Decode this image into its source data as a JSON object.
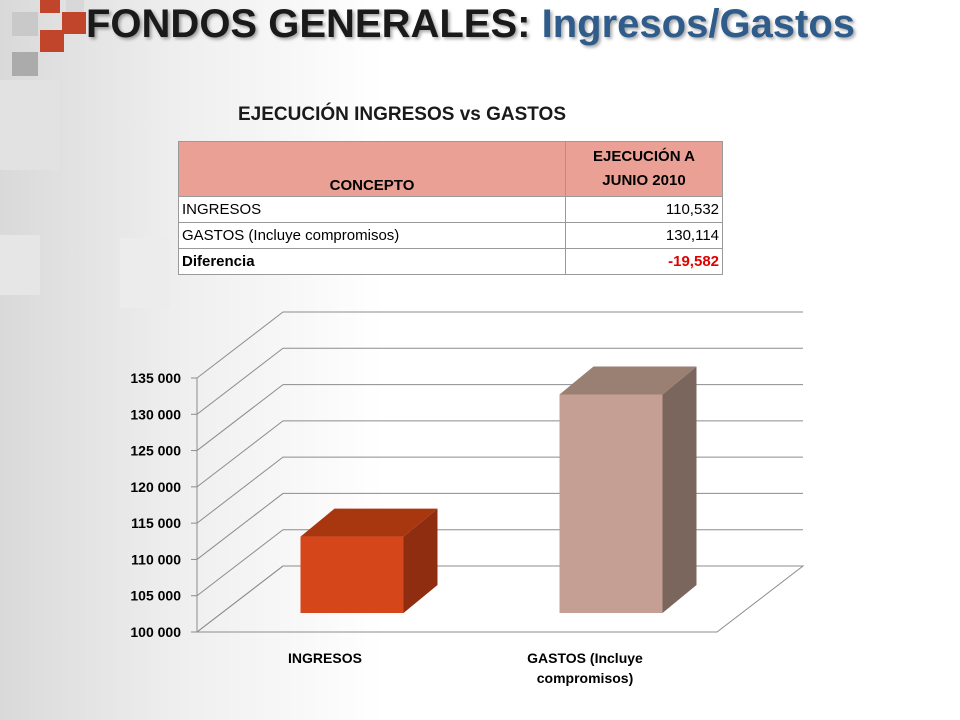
{
  "title": {
    "main": "FONDOS GENERALES:",
    "sub": "Ingresos/Gastos"
  },
  "table": {
    "heading": "EJECUCIÓN INGRESOS vs GASTOS",
    "headers": [
      "CONCEPTO",
      "EJECUCIÓN A JUNIO 2010"
    ],
    "rows": [
      {
        "concepto": "INGRESOS",
        "valor": "110,532"
      },
      {
        "concepto": "GASTOS (Incluye compromisos)",
        "valor": "130,114"
      },
      {
        "concepto": "Diferencia",
        "valor": "-19,582"
      }
    ]
  },
  "chart_data": {
    "type": "bar",
    "categories": [
      "INGRESOS",
      "GASTOS (Incluye compromisos)"
    ],
    "values": [
      110532,
      130114
    ],
    "title": "",
    "xlabel": "",
    "ylabel": "",
    "ylim": [
      100000,
      135000
    ],
    "ytick_labels": [
      "100 000",
      "105 000",
      "110 000",
      "115 000",
      "120 000",
      "125 000",
      "130 000",
      "135 000"
    ],
    "grid": true,
    "legend": "none",
    "colors": {
      "ingresos_front": "#d5461a",
      "ingresos_side": "#8e2d10",
      "ingresos_top": "#a8360f",
      "gastos_front": "#c59f93",
      "gastos_side": "#7a665c",
      "gastos_top": "#9a7f73",
      "negative": "#e00000",
      "header_fill": "#eaa095",
      "title_blue": "#2f5c8a"
    }
  }
}
